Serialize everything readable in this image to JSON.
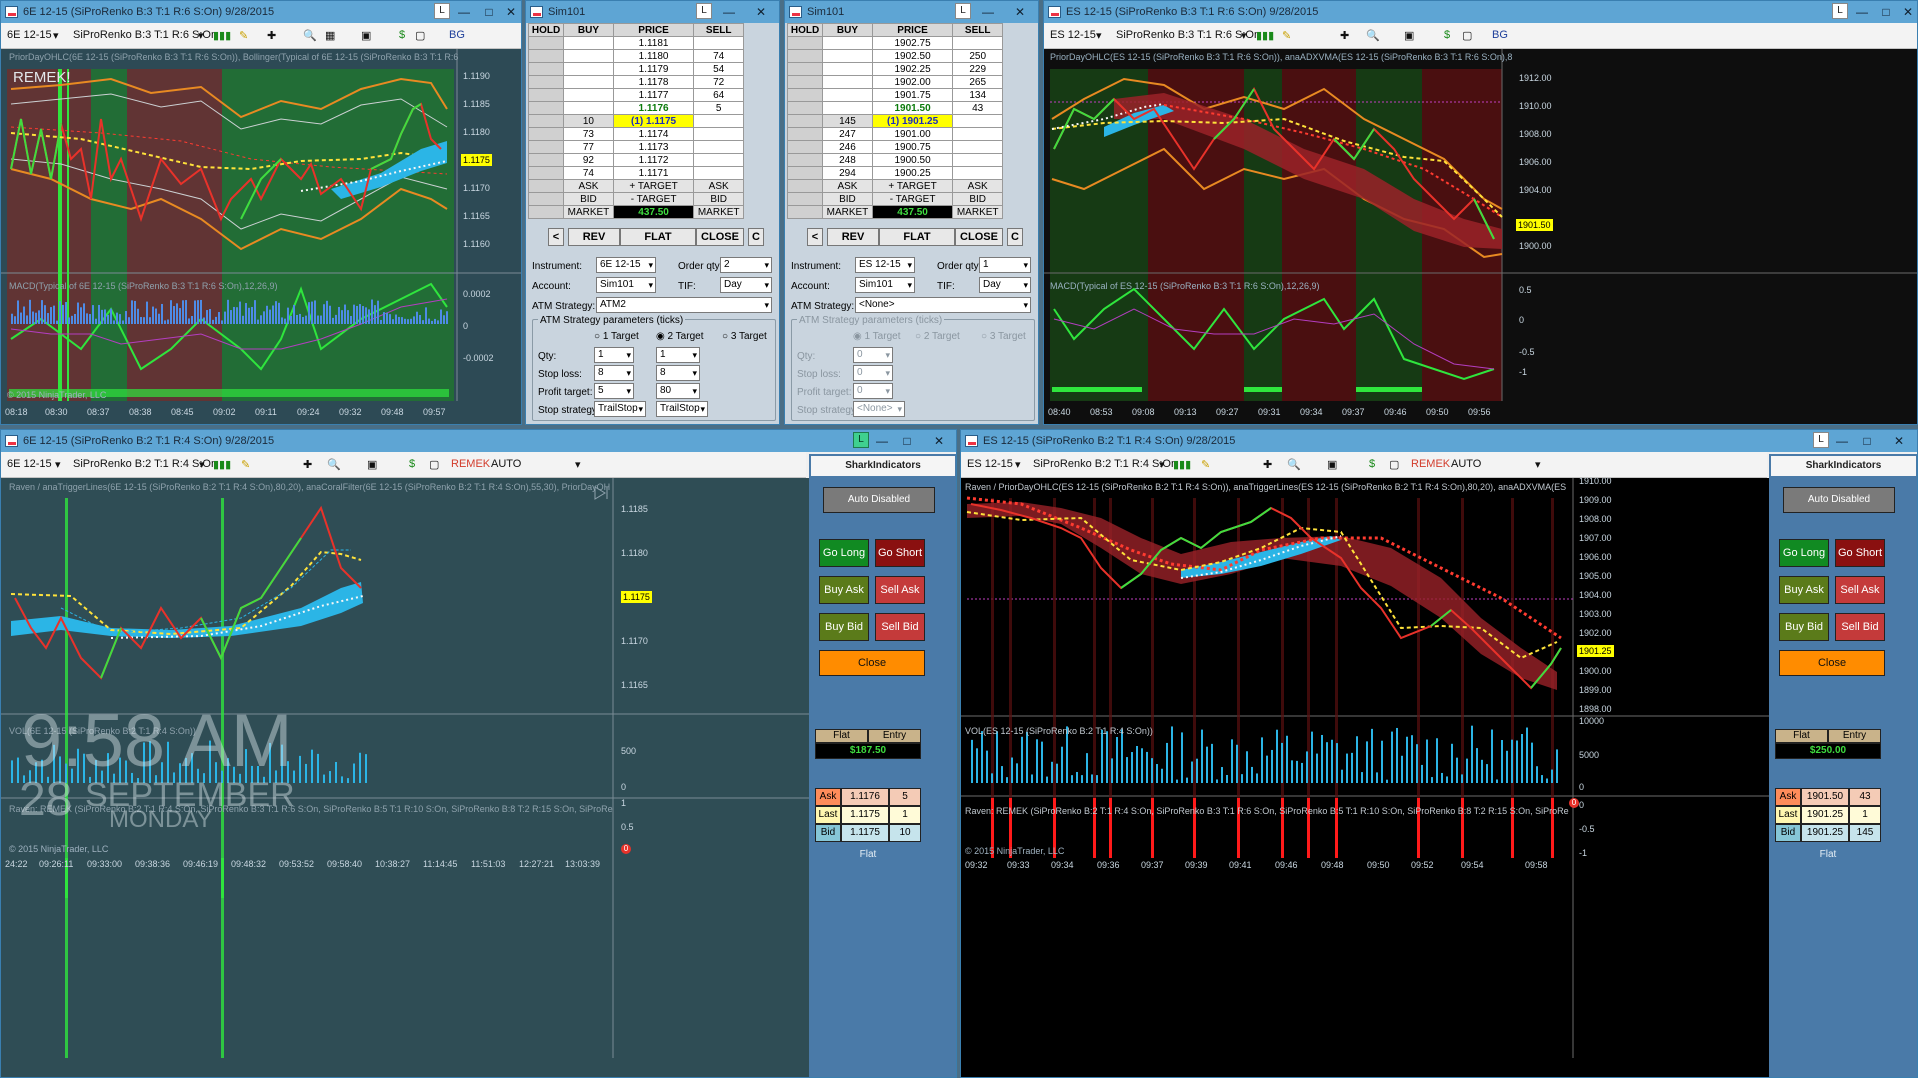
{
  "tl": {
    "title": "6E 12-15  (SiProRenko B:3 T:1 R:6 S:On)  9/28/2015",
    "instrument": "6E 12-15",
    "bars": "SiProRenko B:3 T:1 R:6 S:On",
    "bg": "BG",
    "overlay": "REMEK!",
    "ind": "PriorDayOHLC(6E 12-15 (SiProRenko B:3 T:1 R:6 S:On)), Bollinger(Typical of 6E 12-15 (SiProRenko B:3 T:1 R:6",
    "macd": "MACD(Typical of 6E 12-15 (SiProRenko B:3 T:1 R:6 S:On),12,26,9)",
    "copy": "© 2015 NinjaTrader, LLC",
    "price_tag": "1.1175",
    "ticks": [
      "1.1190",
      "1.1185",
      "1.1180",
      "1.1170",
      "1.1165",
      "1.1160"
    ],
    "macd_ticks": [
      "0.0002",
      "0",
      "-0.0002"
    ],
    "times": [
      "08:18",
      "08:30",
      "08:37",
      "08:38",
      "08:45",
      "09:02",
      "09:11",
      "09:24",
      "09:32",
      "09:48",
      "09:57"
    ]
  },
  "dom1": {
    "title": "Sim101",
    "hold": "HOLD",
    "buy": "BUY",
    "price": "PRICE",
    "sell": "SELL",
    "rows": [
      [
        "",
        "1.1181",
        ""
      ],
      [
        "",
        "1.1180",
        "74"
      ],
      [
        "",
        "1.1179",
        "54"
      ],
      [
        "",
        "1.1178",
        "72"
      ],
      [
        "",
        "1.1177",
        "64"
      ],
      [
        "",
        "1.1176",
        "5"
      ],
      [
        "10",
        "(1) 1.1175",
        ""
      ],
      [
        "73",
        "1.1174",
        ""
      ],
      [
        "77",
        "1.1173",
        ""
      ],
      [
        "92",
        "1.1172",
        ""
      ],
      [
        "74",
        "1.1171",
        ""
      ],
      [
        "ASK",
        "+ TARGET",
        "ASK"
      ],
      [
        "BID",
        "- TARGET",
        "BID"
      ],
      [
        "MARKET",
        "437.50",
        "MARKET"
      ]
    ],
    "rev": "REV",
    "flat": "FLAT",
    "close": "CLOSE",
    "c": "C",
    "lt": "<",
    "instrument_l": "Instrument:",
    "instrument": "6E 12-15",
    "orderqty_l": "Order qty:",
    "orderqty": "2",
    "account_l": "Account:",
    "account": "Sim101",
    "tif_l": "TIF:",
    "tif": "Day",
    "atm_l": "ATM Strategy:",
    "atm": "ATM2",
    "params": "ATM Strategy parameters (ticks)",
    "t1": "1 Target",
    "t2": "2 Target",
    "t3": "3 Target",
    "qty_l": "Qty:",
    "qty1": "1",
    "qty2": "1",
    "stop_l": "Stop loss:",
    "stop1": "8",
    "stop2": "8",
    "profit_l": "Profit target:",
    "profit1": "5",
    "profit2": "80",
    "strat_l": "Stop strategy:",
    "strat1": "TrailStop",
    "strat2": "TrailStop"
  },
  "dom2": {
    "title": "Sim101",
    "hold": "HOLD",
    "buy": "BUY",
    "price": "PRICE",
    "sell": "SELL",
    "rows": [
      [
        "",
        "1902.75",
        ""
      ],
      [
        "",
        "1902.50",
        "250"
      ],
      [
        "",
        "1902.25",
        "229"
      ],
      [
        "",
        "1902.00",
        "265"
      ],
      [
        "",
        "1901.75",
        "134"
      ],
      [
        "",
        "1901.50",
        "43"
      ],
      [
        "145",
        "(1) 1901.25",
        ""
      ],
      [
        "247",
        "1901.00",
        ""
      ],
      [
        "246",
        "1900.75",
        ""
      ],
      [
        "248",
        "1900.50",
        ""
      ],
      [
        "294",
        "1900.25",
        ""
      ],
      [
        "ASK",
        "+ TARGET",
        "ASK"
      ],
      [
        "BID",
        "- TARGET",
        "BID"
      ],
      [
        "MARKET",
        "437.50",
        "MARKET"
      ]
    ],
    "rev": "REV",
    "flat": "FLAT",
    "close": "CLOSE",
    "c": "C",
    "lt": "<",
    "instrument_l": "Instrument:",
    "instrument": "ES 12-15",
    "orderqty_l": "Order qty:",
    "orderqty": "1",
    "account_l": "Account:",
    "account": "Sim101",
    "tif_l": "TIF:",
    "tif": "Day",
    "atm_l": "ATM Strategy:",
    "atm": "<None>",
    "params": "ATM Strategy parameters (ticks)",
    "t1": "1 Target",
    "t2": "2 Target",
    "t3": "3 Target",
    "qty_l": "Qty:",
    "qty1": "0",
    "stop_l": "Stop loss:",
    "stop1": "0",
    "profit_l": "Profit target:",
    "profit1": "0",
    "strat_l": "Stop strategy:",
    "strat1": "<None>"
  },
  "tr": {
    "title": "ES 12-15  (SiProRenko B:3 T:1 R:6 S:On)  9/28/2015",
    "instrument": "ES 12-15",
    "bars": "SiProRenko B:3 T:1 R:6 S:On",
    "bg": "BG",
    "ind": "PriorDayOHLC(ES 12-15 (SiProRenko B:3 T:1 R:6 S:On)), anaADXVMA(ES 12-15 (SiProRenko B:3 T:1 R:6 S:On),8",
    "macd": "MACD(Typical of ES 12-15 (SiProRenko B:3 T:1 R:6 S:On),12,26,9)",
    "price_tag": "1901.50",
    "ticks": [
      "1912.00",
      "1910.00",
      "1908.00",
      "1906.00",
      "1904.00",
      "1900.00"
    ],
    "macd_ticks": [
      "0.5",
      "0",
      "-0.5",
      "-1"
    ],
    "times": [
      "08:40",
      "08:53",
      "09:08",
      "09:13",
      "09:27",
      "09:31",
      "09:34",
      "09:37",
      "09:46",
      "09:50",
      "09:56"
    ]
  },
  "bl": {
    "title": "6E 12-15  (SiProRenko B:2 T:1 R:4 S:On)  9/28/2015",
    "instrument": "6E 12-15",
    "bars": "SiProRenko B:2 T:1 R:4 S:On",
    "remek": "REMEK",
    "auto": "AUTO",
    "ind": "Raven / anaTriggerLines(6E 12-15 (SiProRenko B:2 T:1 R:4 S:On),80,20), anaCoralFilter(6E 12-15 (SiProRenko B:2 T:1 R:4 S:On),55,30), PriorDayOH",
    "vol": "VOL(6E 12-15 (SiProRenko B:2 T:1 R:4 S:On))",
    "raven": "Raven: REMEK (SiProRenko B:2 T:1 R:4 S:On, SiProRenko B:3 T:1 R:6 S:On, SiProRenko B:5 T:1 R:10 S:On, SiProRenko B:8 T:2 R:15 S:On, SiProRe",
    "copy": "© 2015 NinjaTrader, LLC",
    "price_tag": "1.1175",
    "ticks": [
      "1.1185",
      "1.1180",
      "1.1170",
      "1.1165"
    ],
    "vol_ticks": [
      "500",
      "0"
    ],
    "raven_ticks": [
      "1",
      "0.5",
      "0"
    ],
    "times": [
      "24:22",
      "09:26:11",
      "09:33:00",
      "09:38:36",
      "09:46:19",
      "09:48:32",
      "09:53:52",
      "09:58:40",
      "10:38:27",
      "11:14:45",
      "11:51:03",
      "12:27:21",
      "13:03:39"
    ],
    "clock": "9:58 AM",
    "day": "28",
    "month": "SEPTEMBER",
    "weekday": "MONDAY"
  },
  "shark1": {
    "logo": "SharkIndicators",
    "auto_disabled": "Auto Disabled",
    "go_long": "Go Long",
    "go_short": "Go Short",
    "buy_ask": "Buy Ask",
    "sell_ask": "Sell Ask",
    "buy_bid": "Buy Bid",
    "sell_bid": "Sell Bid",
    "close": "Close",
    "flat": "Flat",
    "entry": "Entry",
    "pnl": "$187.50",
    "ask_l": "Ask",
    "ask": "1.1176",
    "ask_n": "5",
    "last_l": "Last",
    "last": "1.1175",
    "last_n": "1",
    "bid_l": "Bid",
    "bid": "1.1175",
    "bid_n": "10",
    "status": "Flat"
  },
  "br": {
    "title": "ES 12-15  (SiProRenko B:2 T:1 R:4 S:On)  9/28/2015",
    "instrument": "ES 12-15",
    "bars": "SiProRenko B:2 T:1 R:4 S:On",
    "remek": "REMEK",
    "auto": "AUTO",
    "ind": "Raven / PriorDayOHLC(ES 12-15 (SiProRenko B:2 T:1 R:4 S:On)), anaTriggerLines(ES 12-15 (SiProRenko B:2 T:1 R:4 S:On),80,20), anaADXVMA(ES",
    "vol": "VOL(ES 12-15 (SiProRenko B:2 T:1 R:4 S:On))",
    "raven": "Raven: REMEK (SiProRenko B:2 T:1 R:4 S:On, SiProRenko B:3 T:1 R:6 S:On, SiProRenko B:5 T:1 R:10 S:On, SiProRenko B:8 T:2 R:15 S:On, SiProRe",
    "copy": "© 2015 NinjaTrader, LLC",
    "price_tag": "1901.25",
    "ticks": [
      "1910.00",
      "1909.00",
      "1908.00",
      "1907.00",
      "1906.00",
      "1905.00",
      "1904.00",
      "1903.00",
      "1902.00",
      "1900.00",
      "1899.00",
      "1898.00"
    ],
    "vol_ticks": [
      "10000",
      "5000",
      "0"
    ],
    "raven_ticks": [
      "0",
      "-0.5",
      "-1"
    ],
    "times": [
      "09:32",
      "09:33",
      "09:34",
      "09:36",
      "09:37",
      "09:39",
      "09:41",
      "09:46",
      "09:48",
      "09:50",
      "09:52",
      "09:54",
      "09:58"
    ]
  },
  "shark2": {
    "logo": "SharkIndicators",
    "auto_disabled": "Auto Disabled",
    "go_long": "Go Long",
    "go_short": "Go Short",
    "buy_ask": "Buy Ask",
    "sell_ask": "Sell Ask",
    "buy_bid": "Buy Bid",
    "sell_bid": "Sell Bid",
    "close": "Close",
    "flat": "Flat",
    "entry": "Entry",
    "pnl": "$250.00",
    "ask_l": "Ask",
    "ask": "1901.50",
    "ask_n": "43",
    "last_l": "Last",
    "last": "1901.25",
    "last_n": "1",
    "bid_l": "Bid",
    "bid": "1901.25",
    "bid_n": "145",
    "status": "Flat"
  }
}
